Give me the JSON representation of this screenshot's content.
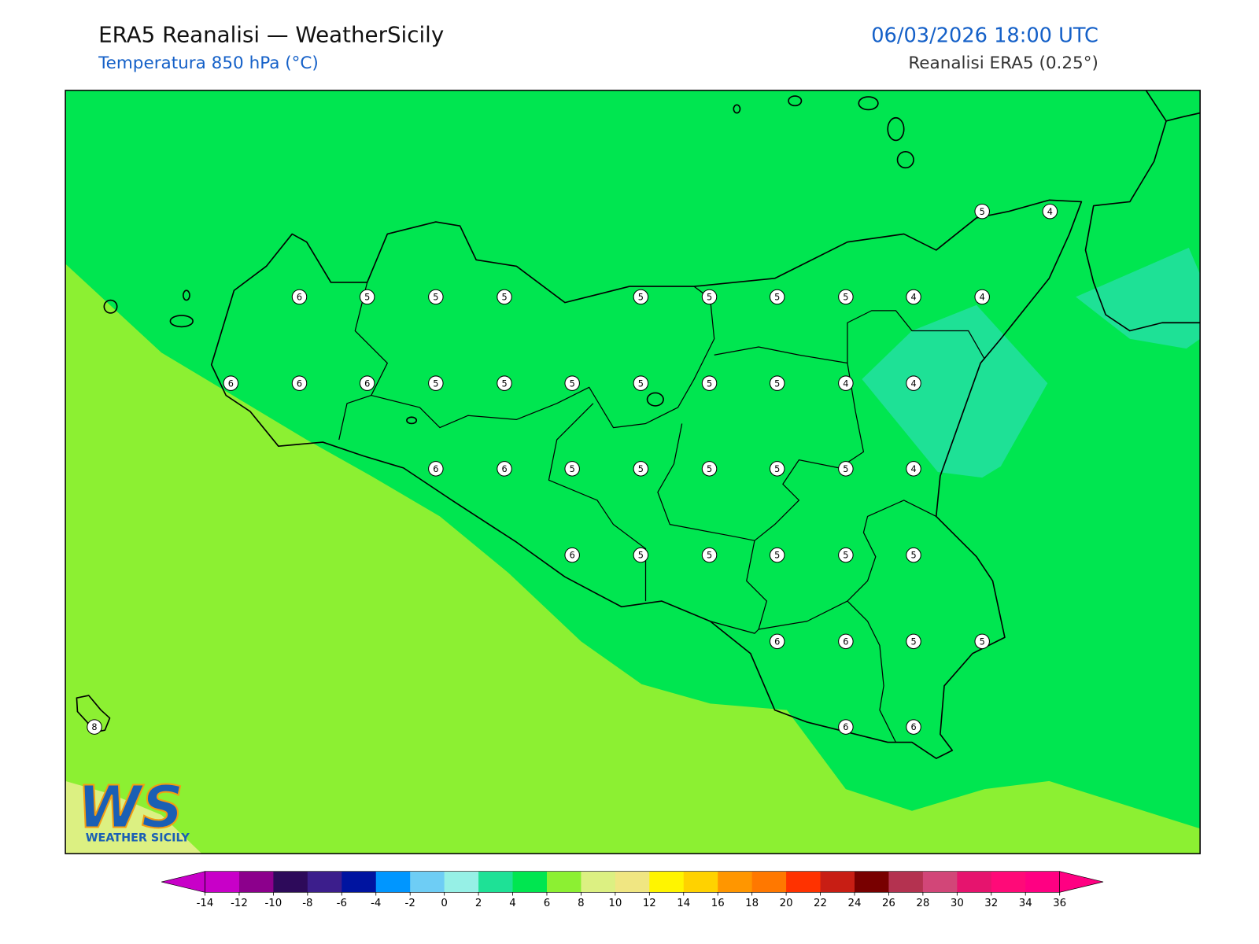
{
  "header": {
    "title": "ERA5 Reanalisi — WeatherSicily",
    "subtitle": "Temperatura 850 hPa (°C)",
    "date": "06/03/2026 18:00 UTC",
    "source": "Reanalisi ERA5 (0.25°)"
  },
  "map": {
    "stations": [
      5,
      4,
      6,
      5,
      5,
      5,
      5,
      5,
      5,
      5,
      4,
      4,
      6,
      6,
      6,
      5,
      5,
      5,
      5,
      5,
      5,
      4,
      4,
      6,
      6,
      5,
      5,
      5,
      5,
      5,
      4,
      6,
      5,
      5,
      5,
      5,
      5,
      6,
      6,
      5,
      5,
      8,
      6,
      6
    ]
  },
  "colorbar": {
    "ticks": [
      -14,
      -12,
      -10,
      -8,
      -6,
      -4,
      -2,
      0,
      2,
      4,
      6,
      8,
      10,
      12,
      14,
      16,
      18,
      20,
      22,
      24,
      26,
      28,
      30,
      32,
      34,
      36
    ],
    "colors": [
      "#c800c8",
      "#8c008c",
      "#2d0a5a",
      "#3c1e8c",
      "#0014a0",
      "#0096ff",
      "#6ecdf5",
      "#96f0e6",
      "#1ee196",
      "#00e650",
      "#8cf032",
      "#dcf082",
      "#f0e682",
      "#fff500",
      "#ffd200",
      "#ff9600",
      "#ff7800",
      "#ff3200",
      "#c81e14",
      "#780000",
      "#b43250",
      "#d24678",
      "#e6146e",
      "#ff0a78",
      "#ff0082"
    ]
  },
  "logo": {
    "mark": "WS",
    "text": "WEATHER SICILY"
  }
}
